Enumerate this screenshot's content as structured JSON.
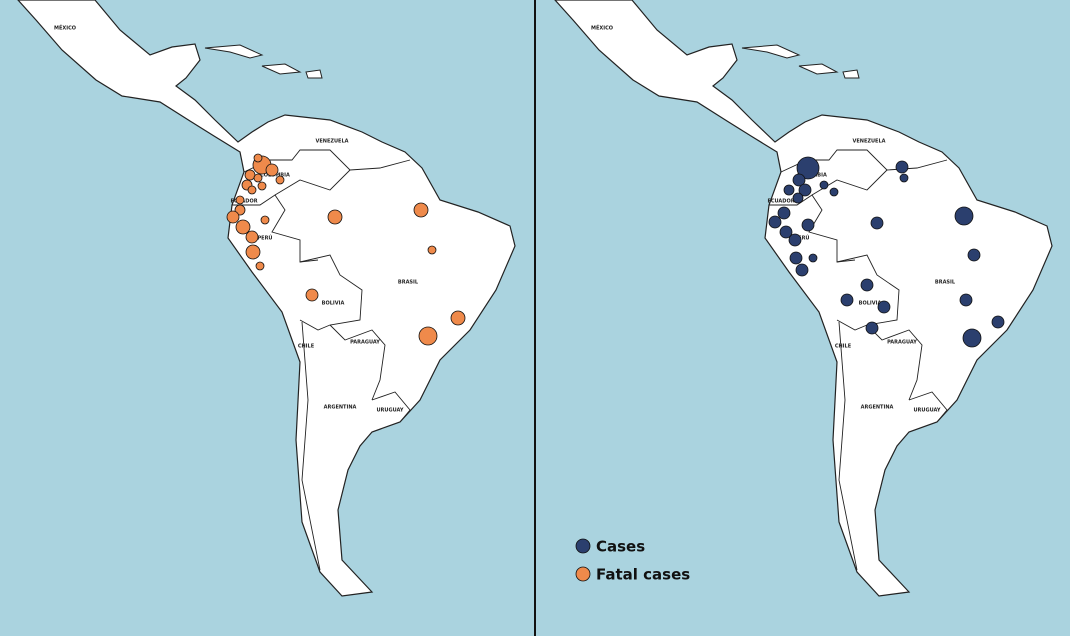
{
  "country_labels": [
    "MÉXICO",
    "VENEZUELA",
    "COLOMBIA",
    "ECUADOR",
    "PERÚ",
    "BRASIL",
    "BOLIVIA",
    "CHILE",
    "PARAGUAY",
    "ARGENTINA",
    "URUGUAY"
  ],
  "legend": {
    "cases": "Cases",
    "fatal_cases": "Fatal cases"
  }
}
